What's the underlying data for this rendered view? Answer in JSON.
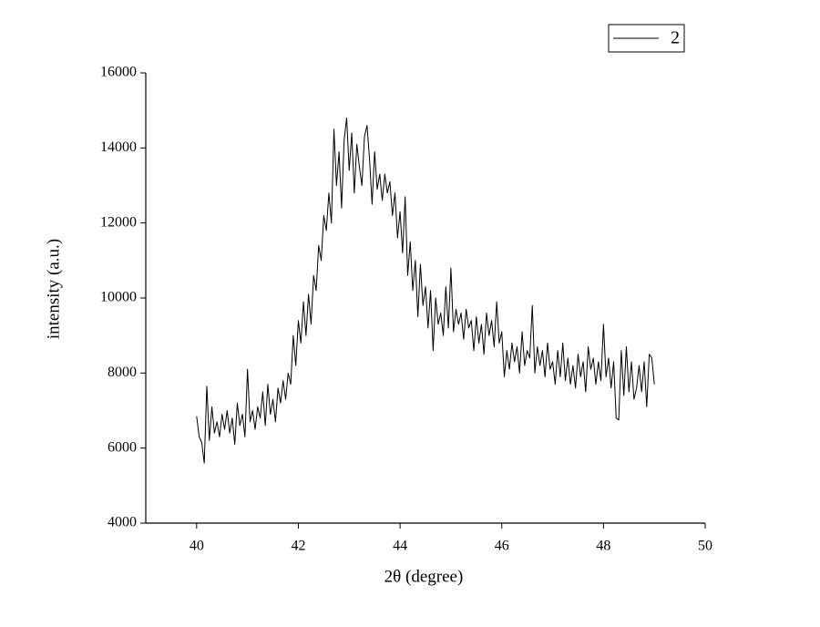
{
  "chart_data": {
    "type": "line",
    "x_label": "2θ (degree)",
    "y_label": "intensity (a.u.)",
    "xlim": [
      39,
      50
    ],
    "xticks": [
      40,
      42,
      44,
      46,
      48,
      50
    ],
    "ylim": [
      4000,
      16000
    ],
    "yticks": [
      4000,
      6000,
      8000,
      10000,
      12000,
      14000,
      16000
    ],
    "legend": "top-right",
    "x": [
      40.0,
      40.05,
      40.1,
      40.15,
      40.2,
      40.25,
      40.3,
      40.35,
      40.4,
      40.45,
      40.5,
      40.55,
      40.6,
      40.65,
      40.7,
      40.75,
      40.8,
      40.85,
      40.9,
      40.95,
      41.0,
      41.05,
      41.1,
      41.15,
      41.2,
      41.25,
      41.3,
      41.35,
      41.4,
      41.45,
      41.5,
      41.55,
      41.6,
      41.65,
      41.7,
      41.75,
      41.8,
      41.85,
      41.9,
      41.95,
      42.0,
      42.05,
      42.1,
      42.15,
      42.2,
      42.25,
      42.3,
      42.35,
      42.4,
      42.45,
      42.5,
      42.55,
      42.6,
      42.65,
      42.7,
      42.75,
      42.8,
      42.85,
      42.9,
      42.95,
      43.0,
      43.05,
      43.1,
      43.15,
      43.2,
      43.25,
      43.3,
      43.35,
      43.4,
      43.45,
      43.5,
      43.55,
      43.6,
      43.65,
      43.7,
      43.75,
      43.8,
      43.85,
      43.9,
      43.95,
      44.0,
      44.05,
      44.1,
      44.15,
      44.2,
      44.25,
      44.3,
      44.35,
      44.4,
      44.45,
      44.5,
      44.55,
      44.6,
      44.65,
      44.7,
      44.75,
      44.8,
      44.85,
      44.9,
      44.95,
      45.0,
      45.05,
      45.1,
      45.15,
      45.2,
      45.25,
      45.3,
      45.35,
      45.4,
      45.45,
      45.5,
      45.55,
      45.6,
      45.65,
      45.7,
      45.75,
      45.8,
      45.85,
      45.9,
      45.95,
      46.0,
      46.05,
      46.1,
      46.15,
      46.2,
      46.25,
      46.3,
      46.35,
      46.4,
      46.45,
      46.5,
      46.55,
      46.6,
      46.65,
      46.7,
      46.75,
      46.8,
      46.85,
      46.9,
      46.95,
      47.0,
      47.05,
      47.1,
      47.15,
      47.2,
      47.25,
      47.3,
      47.35,
      47.4,
      47.45,
      47.5,
      47.55,
      47.6,
      47.65,
      47.7,
      47.75,
      47.8,
      47.85,
      47.9,
      47.95,
      48.0,
      48.05,
      48.1,
      48.15,
      48.2,
      48.25,
      48.3,
      48.35,
      48.4,
      48.45,
      48.5,
      48.55,
      48.6,
      48.65,
      48.7,
      48.75,
      48.8,
      48.85,
      48.9,
      48.95,
      49.0
    ],
    "series": [
      {
        "name": "2",
        "color": "#000000",
        "values": [
          6850,
          6300,
          6150,
          5600,
          7650,
          6200,
          7100,
          6400,
          6700,
          6300,
          6900,
          6500,
          7000,
          6400,
          6800,
          6100,
          7200,
          6600,
          6900,
          6300,
          8100,
          6700,
          7000,
          6500,
          7100,
          6800,
          7500,
          6600,
          7700,
          6900,
          7300,
          6700,
          7600,
          7200,
          7800,
          7300,
          8000,
          7700,
          9000,
          8200,
          9400,
          8800,
          9900,
          9000,
          10100,
          9300,
          10600,
          10200,
          11400,
          11000,
          12200,
          11800,
          12800,
          12000,
          14500,
          13000,
          13900,
          12400,
          14200,
          14800,
          13400,
          14400,
          12800,
          14100,
          13500,
          13000,
          14300,
          14600,
          13700,
          12500,
          13900,
          12900,
          13300,
          12600,
          13300,
          12800,
          13100,
          12200,
          12800,
          11600,
          12300,
          11200,
          12700,
          10600,
          11500,
          10200,
          11000,
          9500,
          10900,
          9800,
          10300,
          9200,
          10200,
          8600,
          10000,
          9300,
          9600,
          9000,
          10300,
          9200,
          10800,
          9100,
          9700,
          9300,
          9600,
          8900,
          9700,
          9200,
          9400,
          8600,
          9500,
          8800,
          9300,
          8500,
          9600,
          9000,
          9400,
          8700,
          9900,
          8800,
          9100,
          7900,
          8600,
          8100,
          8800,
          8300,
          8700,
          8000,
          9100,
          8200,
          8600,
          8400,
          9800,
          8000,
          8700,
          8200,
          8600,
          7900,
          8800,
          8100,
          8300,
          7700,
          8600,
          7900,
          8800,
          7800,
          8400,
          7700,
          8200,
          7600,
          8500,
          7900,
          8300,
          7500,
          8700,
          8100,
          8400,
          7700,
          8300,
          7800,
          9300,
          7900,
          8400,
          7600,
          8300,
          6800,
          6750,
          8600,
          7400,
          8700,
          7500,
          8300,
          7300,
          7600,
          8200,
          7500,
          8300,
          7100,
          8500,
          8400,
          7700
        ]
      }
    ]
  }
}
